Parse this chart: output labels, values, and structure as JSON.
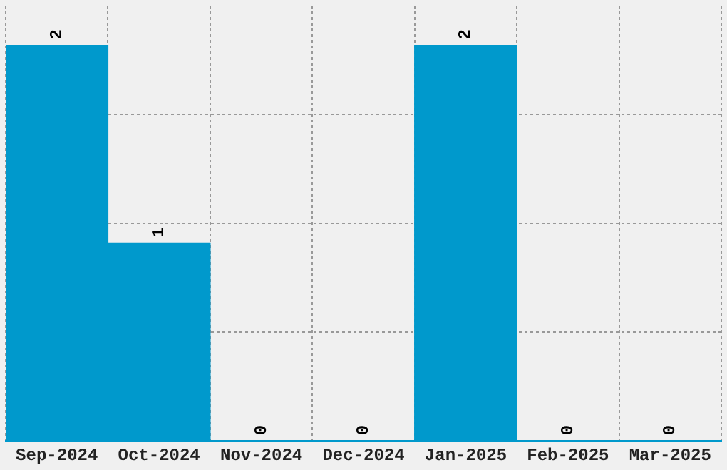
{
  "chart_data": {
    "type": "bar",
    "categories": [
      "Sep-2024",
      "Oct-2024",
      "Nov-2024",
      "Dec-2024",
      "Jan-2025",
      "Feb-2025",
      "Mar-2025"
    ],
    "values": [
      2,
      1,
      0,
      0,
      2,
      0,
      0
    ],
    "color": "#0099cc",
    "ylim": [
      0,
      2.2
    ],
    "yticks": [
      {
        "value": 0.55,
        "label": null
      },
      {
        "value": 1.1,
        "label": null
      },
      {
        "value": 1.65,
        "label": null
      }
    ],
    "tick_labels": "x",
    "grid": true,
    "data_labels": true,
    "legend": false
  }
}
